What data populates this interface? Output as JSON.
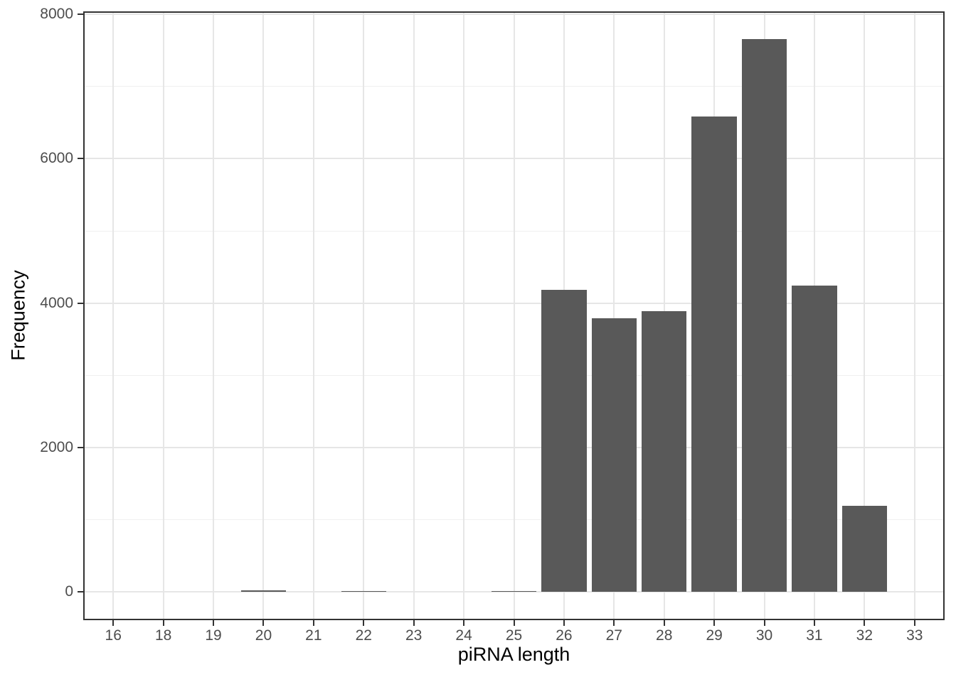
{
  "chart_data": {
    "type": "bar",
    "title": "",
    "xlabel": "piRNA length",
    "ylabel": "Frequency",
    "categories": [
      "16",
      "18",
      "19",
      "20",
      "21",
      "22",
      "23",
      "24",
      "25",
      "26",
      "27",
      "28",
      "29",
      "30",
      "31",
      "32",
      "33"
    ],
    "values": [
      0,
      0,
      0,
      20,
      0,
      15,
      0,
      0,
      12,
      4180,
      3790,
      3890,
      6580,
      7660,
      4240,
      1190,
      0
    ],
    "y_ticks": [
      0,
      2000,
      4000,
      6000,
      8000
    ],
    "y_minor_gridlines": [
      1000,
      3000,
      5000,
      7000
    ],
    "ylim": [
      0,
      8000
    ],
    "axis_value_range": [
      -390,
      8040
    ],
    "bar_width_fraction": 0.9,
    "x_expand_categories": 0.6,
    "legend_position": "none",
    "grid": "vertical major at each category; horizontal major and minor; no vertical minor"
  },
  "colors": {
    "background": "#FFFFFF",
    "bar_fill": "#595959",
    "panel_border": "#333333",
    "tick_mark": "#333333",
    "grid_major": "#E6E6E6",
    "grid_minor": "#F0F0F0",
    "tick_label": "#4D4D4D",
    "axis_title": "#000000"
  }
}
